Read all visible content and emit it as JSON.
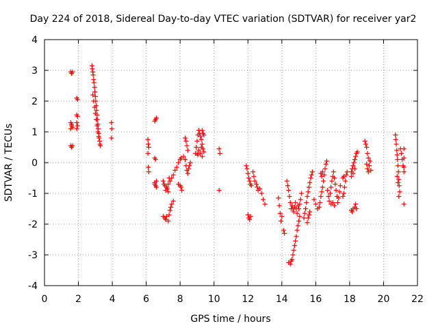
{
  "chart_data": {
    "type": "scatter",
    "title": "Day 224 of 2018, Sidereal Day-to-day VTEC variation (SDTVAR) for receiver yar2",
    "xlabel": "GPS time / hours",
    "ylabel": "SDTVAR / TECUs",
    "xlim": [
      0,
      22
    ],
    "ylim": [
      -4,
      4
    ],
    "xticks": [
      0,
      2,
      4,
      6,
      8,
      10,
      12,
      14,
      16,
      18,
      20,
      22
    ],
    "yticks": [
      -4,
      -3,
      -2,
      -1,
      0,
      1,
      2,
      3,
      4
    ],
    "grid": true,
    "marker": "+",
    "marker_color": "#ff0000",
    "series": [
      {
        "name": "SDTVAR",
        "points": [
          [
            1.55,
            2.95
          ],
          [
            1.6,
            2.9
          ],
          [
            1.65,
            2.95
          ],
          [
            1.55,
            1.3
          ],
          [
            1.6,
            1.2
          ],
          [
            1.55,
            1.1
          ],
          [
            1.6,
            1.25
          ],
          [
            1.65,
            1.15
          ],
          [
            1.55,
            0.55
          ],
          [
            1.6,
            0.5
          ],
          [
            1.65,
            0.55
          ],
          [
            1.9,
            2.1
          ],
          [
            1.95,
            2.05
          ],
          [
            1.9,
            1.55
          ],
          [
            1.95,
            1.5
          ],
          [
            1.9,
            1.3
          ],
          [
            1.95,
            1.2
          ],
          [
            1.9,
            1.1
          ],
          [
            2.8,
            3.15
          ],
          [
            2.82,
            3.05
          ],
          [
            2.85,
            2.95
          ],
          [
            2.87,
            2.85
          ],
          [
            2.9,
            2.7
          ],
          [
            2.92,
            2.6
          ],
          [
            2.95,
            2.45
          ],
          [
            2.97,
            2.3
          ],
          [
            3.0,
            2.15
          ],
          [
            3.02,
            2.0
          ],
          [
            3.05,
            1.85
          ],
          [
            3.07,
            1.7
          ],
          [
            3.1,
            1.55
          ],
          [
            3.12,
            1.4
          ],
          [
            3.15,
            1.25
          ],
          [
            3.17,
            1.1
          ],
          [
            3.2,
            0.95
          ],
          [
            3.22,
            0.8
          ],
          [
            3.25,
            0.7
          ],
          [
            3.27,
            0.6
          ],
          [
            3.3,
            0.55
          ],
          [
            2.85,
            2.2
          ],
          [
            2.9,
            2.0
          ],
          [
            2.95,
            1.8
          ],
          [
            3.0,
            1.6
          ],
          [
            3.05,
            1.4
          ],
          [
            3.1,
            1.2
          ],
          [
            3.15,
            1.0
          ],
          [
            3.2,
            0.85
          ],
          [
            3.95,
            1.3
          ],
          [
            3.97,
            1.1
          ],
          [
            3.95,
            0.8
          ],
          [
            6.1,
            0.75
          ],
          [
            6.12,
            0.6
          ],
          [
            6.15,
            0.5
          ],
          [
            6.1,
            0.3
          ],
          [
            6.12,
            -0.15
          ],
          [
            6.15,
            -0.3
          ],
          [
            6.5,
            1.35
          ],
          [
            6.55,
            1.4
          ],
          [
            6.6,
            1.45
          ],
          [
            6.5,
            0.15
          ],
          [
            6.55,
            0.1
          ],
          [
            6.6,
            -0.6
          ],
          [
            6.5,
            -0.7
          ],
          [
            6.55,
            -0.75
          ],
          [
            6.6,
            -0.8
          ],
          [
            6.5,
            -0.65
          ],
          [
            7.0,
            -0.6
          ],
          [
            7.05,
            -0.7
          ],
          [
            7.1,
            -0.75
          ],
          [
            7.15,
            -0.9
          ],
          [
            7.2,
            -0.8
          ],
          [
            7.3,
            -0.7
          ],
          [
            7.4,
            -0.6
          ],
          [
            7.5,
            -0.5
          ],
          [
            7.6,
            -0.4
          ],
          [
            7.7,
            -0.25
          ],
          [
            7.8,
            -0.15
          ],
          [
            7.9,
            0.0
          ],
          [
            8.0,
            0.1
          ],
          [
            8.05,
            0.15
          ],
          [
            7.3,
            -0.95
          ],
          [
            7.25,
            -0.85
          ],
          [
            7.35,
            -0.5
          ],
          [
            7.0,
            -1.75
          ],
          [
            7.1,
            -1.8
          ],
          [
            7.15,
            -1.85
          ],
          [
            7.2,
            -1.75
          ],
          [
            7.3,
            -1.9
          ],
          [
            7.35,
            -1.7
          ],
          [
            7.4,
            -1.55
          ],
          [
            7.45,
            -1.45
          ],
          [
            7.5,
            -1.35
          ],
          [
            7.6,
            -1.25
          ],
          [
            7.9,
            -0.7
          ],
          [
            8.0,
            -0.75
          ],
          [
            8.05,
            -0.8
          ],
          [
            8.1,
            -0.9
          ],
          [
            8.2,
            0.2
          ],
          [
            8.3,
            0.1
          ],
          [
            8.35,
            -0.1
          ],
          [
            8.4,
            -0.25
          ],
          [
            8.45,
            -0.35
          ],
          [
            8.5,
            -0.2
          ],
          [
            8.55,
            -0.1
          ],
          [
            8.6,
            0.0
          ],
          [
            8.3,
            0.8
          ],
          [
            8.35,
            0.7
          ],
          [
            8.4,
            0.55
          ],
          [
            8.45,
            0.4
          ],
          [
            8.9,
            0.3
          ],
          [
            8.95,
            0.5
          ],
          [
            9.0,
            0.7
          ],
          [
            9.05,
            0.9
          ],
          [
            9.1,
            1.05
          ],
          [
            9.15,
            0.95
          ],
          [
            9.2,
            0.85
          ],
          [
            9.25,
            0.75
          ],
          [
            9.3,
            0.6
          ],
          [
            9.35,
            0.45
          ],
          [
            9.4,
            0.35
          ],
          [
            9.3,
            1.05
          ],
          [
            9.35,
            0.95
          ],
          [
            9.4,
            0.9
          ],
          [
            9.0,
            0.3
          ],
          [
            9.05,
            0.25
          ],
          [
            9.1,
            0.4
          ],
          [
            9.2,
            0.3
          ],
          [
            9.25,
            0.5
          ],
          [
            9.3,
            0.2
          ],
          [
            10.3,
            0.45
          ],
          [
            10.35,
            0.3
          ],
          [
            10.3,
            -0.9
          ],
          [
            11.9,
            -0.1
          ],
          [
            11.95,
            -0.2
          ],
          [
            12.0,
            -0.35
          ],
          [
            12.05,
            -0.5
          ],
          [
            12.1,
            -0.6
          ],
          [
            12.15,
            -0.7
          ],
          [
            12.2,
            -0.75
          ],
          [
            12.0,
            -1.7
          ],
          [
            12.05,
            -1.8
          ],
          [
            12.1,
            -1.85
          ],
          [
            12.15,
            -1.75
          ],
          [
            12.4,
            -0.6
          ],
          [
            12.5,
            -0.7
          ],
          [
            12.55,
            -0.8
          ],
          [
            12.6,
            -0.9
          ],
          [
            12.7,
            -0.85
          ],
          [
            12.8,
            -1.0
          ],
          [
            12.9,
            -1.2
          ],
          [
            13.0,
            -1.35
          ],
          [
            12.3,
            -0.3
          ],
          [
            12.35,
            -0.45
          ],
          [
            13.8,
            -1.15
          ],
          [
            13.85,
            -1.4
          ],
          [
            13.9,
            -1.65
          ],
          [
            13.95,
            -1.9
          ],
          [
            14.0,
            -1.75
          ],
          [
            14.1,
            -2.2
          ],
          [
            14.15,
            -2.3
          ],
          [
            14.3,
            -0.6
          ],
          [
            14.35,
            -0.75
          ],
          [
            14.4,
            -0.9
          ],
          [
            14.45,
            -1.1
          ],
          [
            14.5,
            -1.3
          ],
          [
            14.55,
            -1.5
          ],
          [
            14.6,
            -1.4
          ],
          [
            14.65,
            -1.5
          ],
          [
            14.7,
            -1.6
          ],
          [
            14.75,
            -1.45
          ],
          [
            14.8,
            -1.3
          ],
          [
            14.85,
            -1.5
          ],
          [
            14.9,
            -1.65
          ],
          [
            14.95,
            -1.4
          ],
          [
            15.0,
            -1.5
          ],
          [
            15.05,
            -1.35
          ],
          [
            15.1,
            -1.2
          ],
          [
            15.15,
            -1.0
          ],
          [
            14.4,
            -3.25
          ],
          [
            14.5,
            -3.3
          ],
          [
            14.55,
            -3.2
          ],
          [
            14.6,
            -3.15
          ],
          [
            14.65,
            -3.0
          ],
          [
            14.7,
            -2.85
          ],
          [
            14.75,
            -2.7
          ],
          [
            14.8,
            -2.55
          ],
          [
            14.85,
            -2.4
          ],
          [
            14.9,
            -2.2
          ],
          [
            14.95,
            -2.05
          ],
          [
            15.0,
            -1.9
          ],
          [
            15.05,
            -1.75
          ],
          [
            15.3,
            -1.8
          ],
          [
            15.35,
            -1.65
          ],
          [
            15.4,
            -1.5
          ],
          [
            15.45,
            -1.3
          ],
          [
            15.5,
            -1.1
          ],
          [
            15.55,
            -0.95
          ],
          [
            15.6,
            -0.8
          ],
          [
            15.65,
            -0.65
          ],
          [
            15.7,
            -0.5
          ],
          [
            15.75,
            -0.4
          ],
          [
            15.8,
            -0.3
          ],
          [
            15.5,
            -1.95
          ],
          [
            15.55,
            -1.8
          ],
          [
            15.6,
            -1.7
          ],
          [
            15.65,
            -1.6
          ],
          [
            15.9,
            -1.2
          ],
          [
            16.0,
            -1.35
          ],
          [
            16.1,
            -1.5
          ],
          [
            16.2,
            -1.45
          ],
          [
            16.25,
            -1.3
          ],
          [
            16.3,
            -1.1
          ],
          [
            16.35,
            -0.95
          ],
          [
            16.4,
            -0.8
          ],
          [
            16.45,
            -0.6
          ],
          [
            16.5,
            -0.4
          ],
          [
            16.55,
            -0.2
          ],
          [
            16.6,
            -0.05
          ],
          [
            16.65,
            0.05
          ],
          [
            16.3,
            -0.35
          ],
          [
            16.35,
            -0.45
          ],
          [
            16.4,
            -0.3
          ],
          [
            16.7,
            -0.9
          ],
          [
            16.75,
            -1.1
          ],
          [
            16.8,
            -1.25
          ],
          [
            16.85,
            -1.0
          ],
          [
            16.9,
            -0.8
          ],
          [
            16.95,
            -0.6
          ],
          [
            17.0,
            -0.45
          ],
          [
            17.05,
            -0.3
          ],
          [
            17.1,
            -0.5
          ],
          [
            17.15,
            -0.7
          ],
          [
            17.2,
            -0.9
          ],
          [
            17.25,
            -1.1
          ],
          [
            17.3,
            -1.3
          ],
          [
            17.35,
            -1.15
          ],
          [
            17.4,
            -0.95
          ],
          [
            17.45,
            -0.75
          ],
          [
            16.9,
            -1.35
          ],
          [
            17.0,
            -1.3
          ],
          [
            17.1,
            -1.4
          ],
          [
            17.6,
            -1.1
          ],
          [
            17.65,
            -1.0
          ],
          [
            17.7,
            -0.8
          ],
          [
            17.75,
            -0.6
          ],
          [
            17.8,
            -0.4
          ],
          [
            17.85,
            -0.3
          ],
          [
            17.6,
            -0.5
          ],
          [
            17.65,
            -0.45
          ],
          [
            18.1,
            -1.55
          ],
          [
            18.15,
            -1.6
          ],
          [
            18.2,
            -1.5
          ],
          [
            18.3,
            -1.45
          ],
          [
            18.35,
            -1.35
          ],
          [
            18.4,
            -1.5
          ],
          [
            18.1,
            -0.3
          ],
          [
            18.15,
            -0.2
          ],
          [
            18.2,
            -0.1
          ],
          [
            18.25,
            0.0
          ],
          [
            18.3,
            0.1
          ],
          [
            18.35,
            0.2
          ],
          [
            18.4,
            0.3
          ],
          [
            18.45,
            0.35
          ],
          [
            18.1,
            -0.45
          ],
          [
            18.2,
            -0.35
          ],
          [
            18.3,
            -0.2
          ],
          [
            18.9,
            0.7
          ],
          [
            18.95,
            0.6
          ],
          [
            19.0,
            0.5
          ],
          [
            19.05,
            0.3
          ],
          [
            19.1,
            0.15
          ],
          [
            19.0,
            -0.05
          ],
          [
            19.05,
            -0.2
          ],
          [
            19.1,
            -0.3
          ],
          [
            19.15,
            -0.1
          ],
          [
            19.2,
            0.05
          ],
          [
            19.25,
            -0.25
          ],
          [
            20.7,
            0.9
          ],
          [
            20.72,
            0.75
          ],
          [
            20.75,
            0.6
          ],
          [
            20.78,
            0.4
          ],
          [
            20.8,
            0.25
          ],
          [
            20.82,
            0.1
          ],
          [
            20.85,
            -0.1
          ],
          [
            20.87,
            -0.3
          ],
          [
            20.9,
            -0.55
          ],
          [
            20.92,
            -0.75
          ],
          [
            20.95,
            -0.95
          ],
          [
            20.9,
            -1.1
          ],
          [
            20.85,
            -0.65
          ],
          [
            20.8,
            -0.45
          ],
          [
            21.0,
            0.45
          ],
          [
            21.05,
            0.3
          ],
          [
            21.1,
            0.1
          ],
          [
            21.15,
            -0.1
          ],
          [
            21.2,
            -0.3
          ],
          [
            21.2,
            0.45
          ],
          [
            21.2,
            0.15
          ],
          [
            21.2,
            -0.15
          ],
          [
            21.2,
            -1.35
          ]
        ]
      }
    ]
  }
}
